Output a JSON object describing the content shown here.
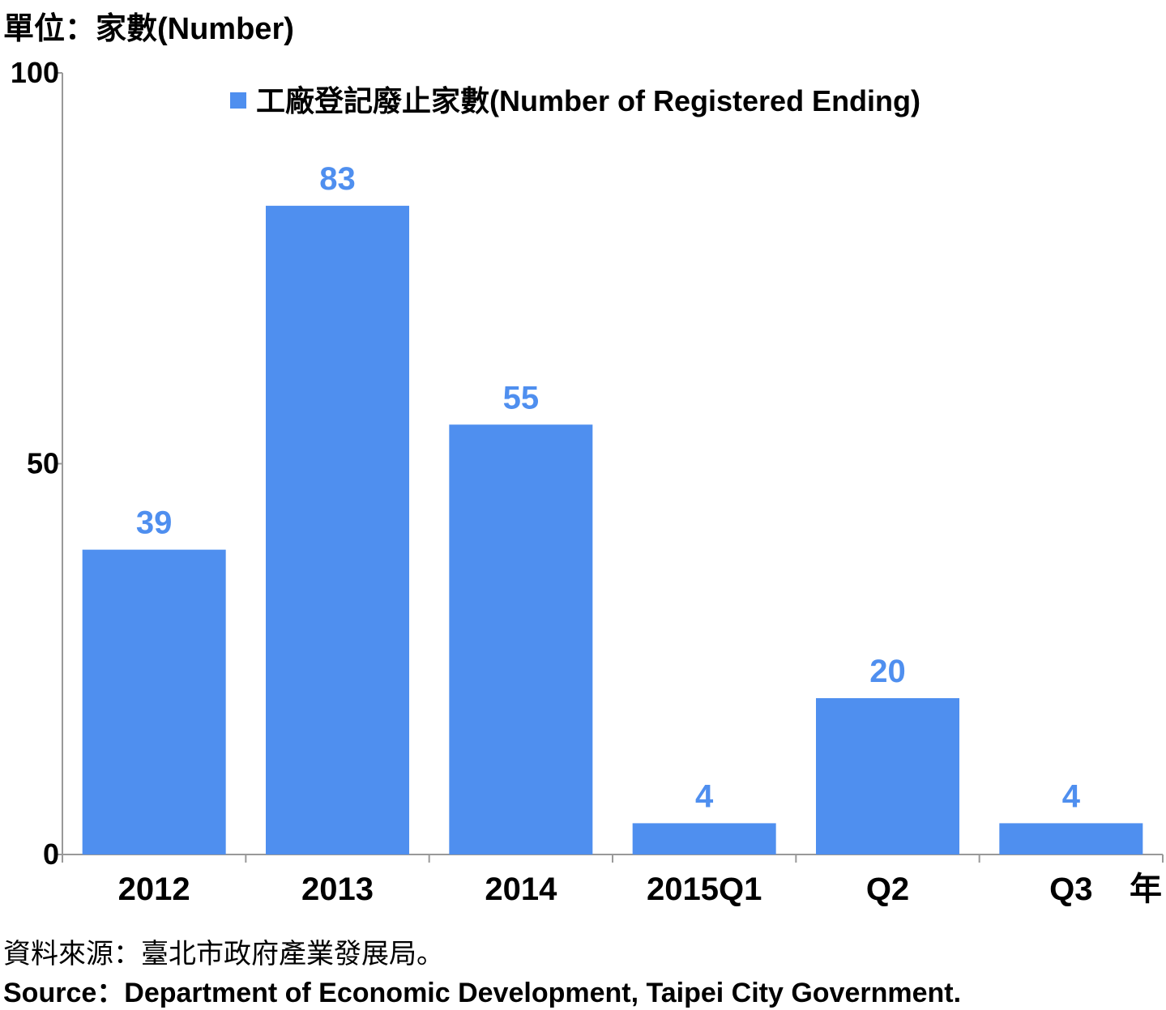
{
  "chart_data": {
    "type": "bar",
    "unit_label": "單位：家數(Number)",
    "categories": [
      "2012",
      "2013",
      "2014",
      "2015Q1",
      "Q2",
      "Q3"
    ],
    "xlabel": "年",
    "series": [
      {
        "name": "工廠登記廢止家數(Number of Registered Ending)",
        "values": [
          39,
          83,
          55,
          4,
          20,
          4
        ],
        "color": "#4F8FEF"
      }
    ],
    "ylim": [
      0,
      100
    ],
    "yticks": [
      0,
      50,
      100
    ],
    "data_label_color": "#4F8FEF",
    "legend": "top-center",
    "grid": false
  },
  "source": {
    "zh": "資料來源：臺北市政府產業發展局。",
    "en": "Source：Department of Economic Development, Taipei City Government."
  }
}
